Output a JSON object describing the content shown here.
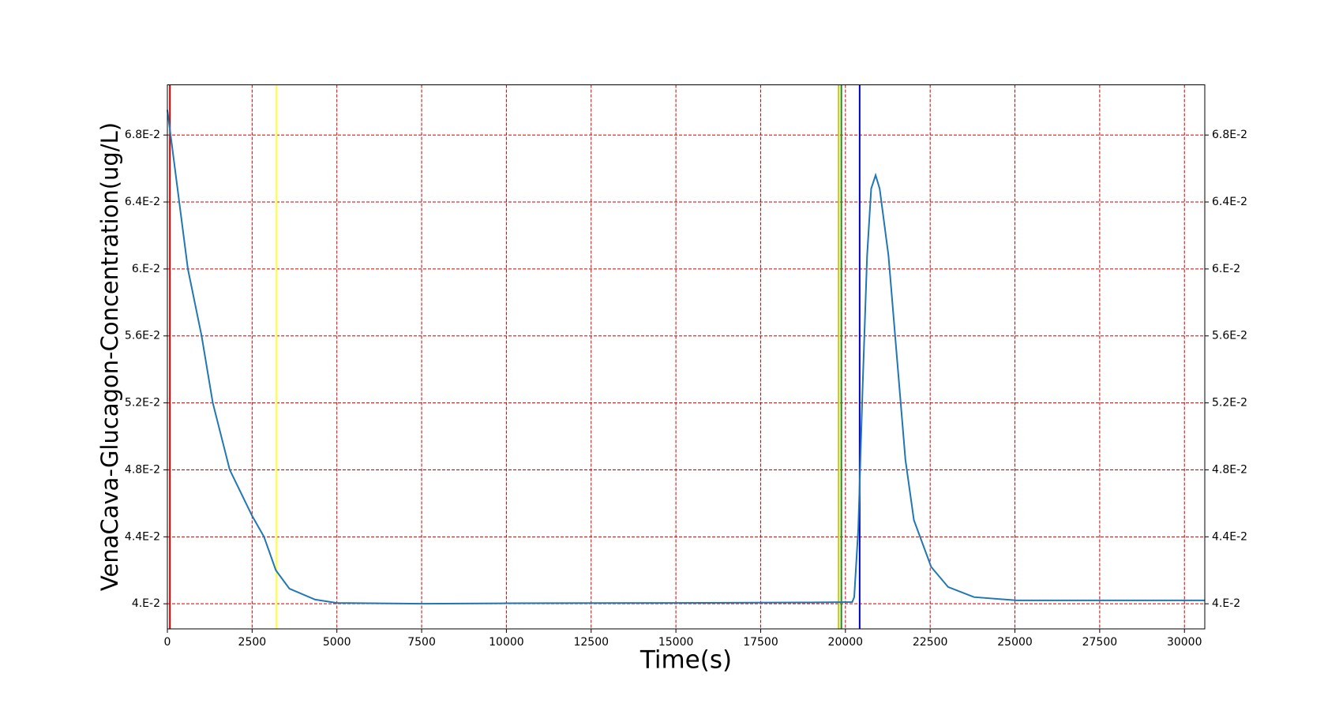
{
  "chart_data": {
    "type": "line",
    "x_label": "Time(s)",
    "y_label": "VenaCava-Glucagon-Concentration(ug/L)",
    "xlim": [
      0,
      30600
    ],
    "ylim": [
      0.0385,
      0.071
    ],
    "xticks": [
      0,
      2500,
      5000,
      7500,
      10000,
      12500,
      15000,
      17500,
      20000,
      22500,
      25000,
      27500,
      30000
    ],
    "yticks": [
      {
        "value": 0.04,
        "label": "4.E-2"
      },
      {
        "value": 0.044,
        "label": "4.4E-2"
      },
      {
        "value": 0.048,
        "label": "4.8E-2"
      },
      {
        "value": 0.052,
        "label": "5.2E-2"
      },
      {
        "value": 0.056,
        "label": "5.6E-2"
      },
      {
        "value": 0.06,
        "label": "6.E-2"
      },
      {
        "value": 0.064,
        "label": "6.4E-2"
      },
      {
        "value": 0.068,
        "label": "6.8E-2"
      }
    ],
    "grid": true,
    "vlines": [
      {
        "x": 75,
        "color": "#c00000"
      },
      {
        "x": 3220,
        "color": "#ffff33"
      },
      {
        "x": 19800,
        "color": "#c8c800"
      },
      {
        "x": 19880,
        "color": "#228b22"
      },
      {
        "x": 20420,
        "color": "#0000cc"
      }
    ],
    "series": [
      {
        "color": "#1f77b4",
        "x": [
          0,
          605,
          1010,
          1340,
          1840,
          2500,
          2850,
          3200,
          3600,
          4360,
          5000,
          7500,
          10000,
          15000,
          19000,
          20200,
          20260,
          20380,
          20510,
          20640,
          20760,
          20890,
          21010,
          21270,
          21520,
          21770,
          22020,
          22530,
          23030,
          23790,
          25050,
          30600
        ],
        "values": [
          0.0695,
          0.06,
          0.056,
          0.052,
          0.048,
          0.04525,
          0.044,
          0.042,
          0.0409,
          0.04025,
          0.04005,
          0.04,
          0.04003,
          0.04005,
          0.04008,
          0.0401,
          0.0404,
          0.0445,
          0.0531,
          0.0608,
          0.0648,
          0.0656,
          0.0648,
          0.0608,
          0.0547,
          0.0486,
          0.045,
          0.0422,
          0.041,
          0.0404,
          0.0402,
          0.0402
        ]
      }
    ]
  }
}
